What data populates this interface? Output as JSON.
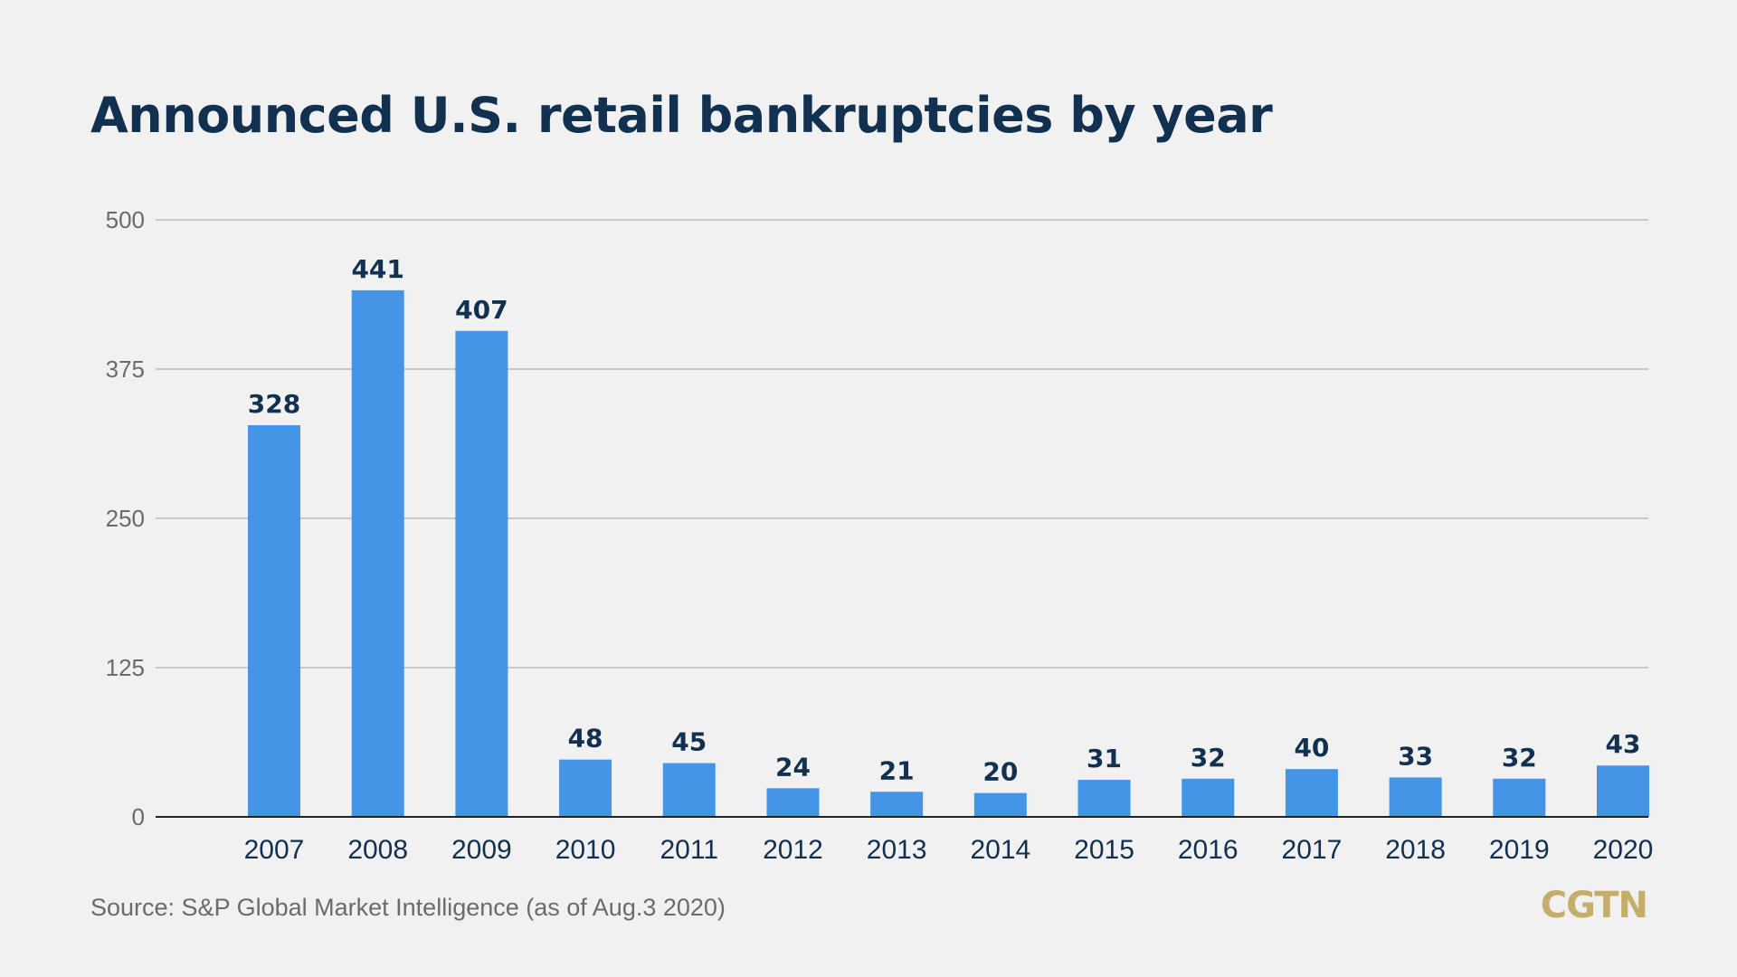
{
  "header": {
    "title": "Announced U.S. retail bankruptcies by year"
  },
  "footer": {
    "source": "Source: S&P Global Market Intelligence  (as of Aug.3 2020)",
    "logo": "CGTN"
  },
  "colors": {
    "bar": "#4595e6",
    "title": "#12304f",
    "label": "#12304f",
    "grid": "#c8c8c8",
    "axis": "#222222",
    "logo": "#c5ad6c"
  },
  "chart_data": {
    "type": "bar",
    "title": "Announced U.S. retail bankruptcies by year",
    "categories": [
      "2007",
      "2008",
      "2009",
      "2010",
      "2011",
      "2012",
      "2013",
      "2014",
      "2015",
      "2016",
      "2017",
      "2018",
      "2019",
      "2020"
    ],
    "values": [
      328,
      441,
      407,
      48,
      45,
      24,
      21,
      20,
      31,
      32,
      40,
      33,
      32,
      43
    ],
    "ylim": [
      0,
      500
    ],
    "yticks": [
      0,
      125,
      250,
      375,
      500
    ],
    "grid": true,
    "data_labels": true,
    "legend": "none"
  }
}
